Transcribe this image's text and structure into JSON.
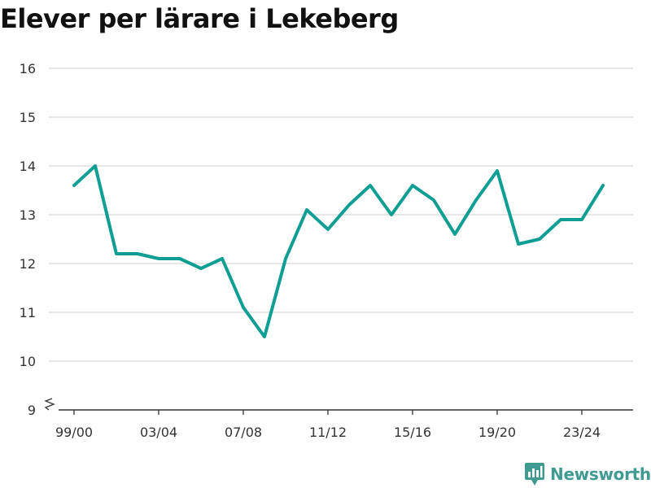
{
  "title": "Elever per lärare i Lekeberg",
  "brand": {
    "name": "Newsworthy",
    "icon": "newsworthy-logo-icon",
    "color": "#3f9a92"
  },
  "colors": {
    "line": "#0f9e94",
    "grid": "#dddddd",
    "axis": "#333333"
  },
  "chart_data": {
    "type": "line",
    "title": "Elever per lärare i Lekeberg",
    "xlabel": "",
    "ylabel": "",
    "ylim": [
      9,
      16
    ],
    "yticks": [
      9,
      10,
      11,
      12,
      13,
      14,
      15,
      16
    ],
    "y_axis_break": true,
    "grid": true,
    "x": [
      "99/00",
      "00/01",
      "01/02",
      "02/03",
      "03/04",
      "04/05",
      "05/06",
      "06/07",
      "07/08",
      "08/09",
      "09/10",
      "10/11",
      "11/12",
      "12/13",
      "13/14",
      "14/15",
      "15/16",
      "16/17",
      "17/18",
      "18/19",
      "19/20",
      "20/21",
      "21/22",
      "22/23",
      "23/24",
      "24/25"
    ],
    "xtick_labels": [
      "99/00",
      "03/04",
      "07/08",
      "11/12",
      "15/16",
      "19/20",
      "23/24"
    ],
    "series": [
      {
        "values": [
          13.6,
          14.0,
          12.2,
          12.2,
          12.1,
          12.1,
          11.9,
          12.1,
          11.1,
          10.5,
          12.1,
          13.1,
          12.7,
          13.2,
          13.6,
          13.0,
          13.6,
          13.3,
          12.6,
          13.3,
          13.9,
          12.4,
          12.5,
          12.9,
          12.9,
          13.6
        ]
      }
    ]
  }
}
